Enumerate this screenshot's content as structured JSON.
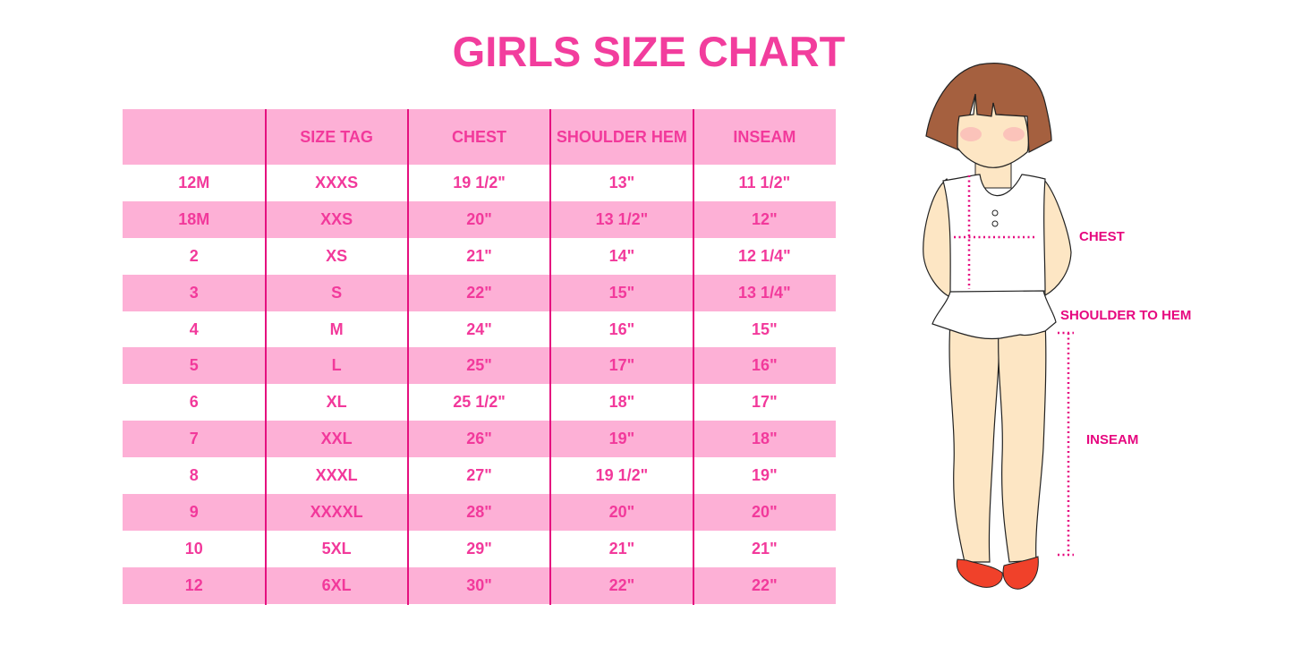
{
  "title": "GIRLS SIZE CHART",
  "table": {
    "headers": [
      "",
      "SIZE TAG",
      "CHEST",
      "SHOULDER HEM",
      "INSEAM"
    ],
    "rows": [
      [
        "12M",
        "XXXS",
        "19 1/2\"",
        "13\"",
        "11 1/2\""
      ],
      [
        "18M",
        "XXS",
        "20\"",
        "13 1/2\"",
        "12\""
      ],
      [
        "2",
        "XS",
        "21\"",
        "14\"",
        "12 1/4\""
      ],
      [
        "3",
        "S",
        "22\"",
        "15\"",
        "13 1/4\""
      ],
      [
        "4",
        "M",
        "24\"",
        "16\"",
        "15\""
      ],
      [
        "5",
        "L",
        "25\"",
        "17\"",
        "16\""
      ],
      [
        "6",
        "XL",
        "25 1/2\"",
        "18\"",
        "17\""
      ],
      [
        "7",
        "XXL",
        "26\"",
        "19\"",
        "18\""
      ],
      [
        "8",
        "XXXL",
        "27\"",
        "19 1/2\"",
        "19\""
      ],
      [
        "9",
        "XXXXL",
        "28\"",
        "20\"",
        "20\""
      ],
      [
        "10",
        "5XL",
        "29\"",
        "21\"",
        "21\""
      ],
      [
        "12",
        "6XL",
        "30\"",
        "22\"",
        "22\""
      ]
    ]
  },
  "figure": {
    "labels": {
      "chest": "CHEST",
      "shoulder_to_hem": "SHOULDER TO HEM",
      "inseam": "INSEAM"
    }
  },
  "colors": {
    "accent": "#f23d9d",
    "row_pink": "#fdb0d6",
    "divider": "#e5107f",
    "hair": "#a5603f",
    "skin": "#fde6c4",
    "shoes": "#f0412a"
  }
}
